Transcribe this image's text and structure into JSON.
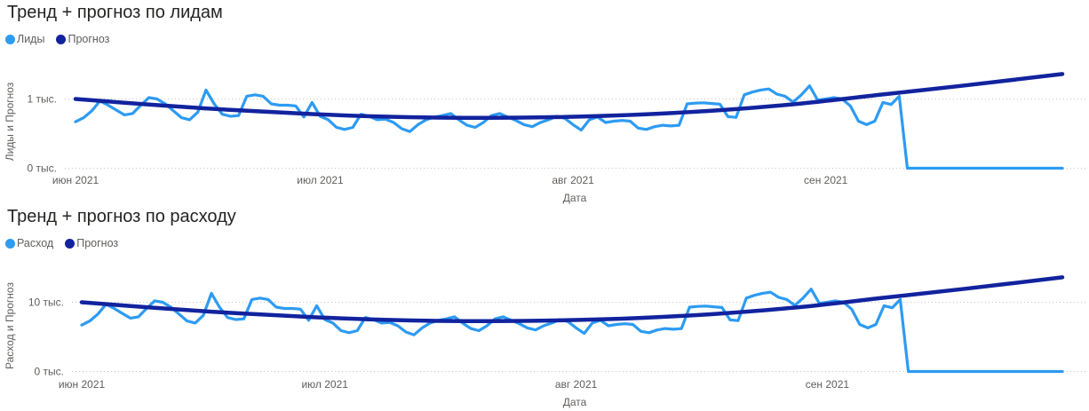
{
  "chart_data": [
    {
      "type": "line",
      "title": "Тренд + прогноз по лидам",
      "xlabel": "Дата",
      "ylabel": "Лиды и Прогноз",
      "x_start": "2021-06-01",
      "x_end": "2021-09-30",
      "legend_position": "top-left",
      "grid": "dotted",
      "xticks": [
        {
          "label": "июн 2021",
          "day": 1
        },
        {
          "label": "июл 2021",
          "day": 31
        },
        {
          "label": "авг 2021",
          "day": 62
        },
        {
          "label": "сен 2021",
          "day": 93
        }
      ],
      "yticks": [
        {
          "label": "0 тыс.",
          "value": 0
        },
        {
          "label": "1 тыс.",
          "value": 1000
        }
      ],
      "series": [
        {
          "name": "Лиды",
          "color": "#2D9BF2",
          "values": [
            670,
            730,
            830,
            970,
            910,
            840,
            770,
            790,
            910,
            1020,
            1000,
            930,
            830,
            730,
            700,
            810,
            1130,
            930,
            780,
            750,
            760,
            1040,
            1060,
            1040,
            930,
            910,
            910,
            900,
            740,
            950,
            750,
            700,
            590,
            560,
            590,
            780,
            750,
            700,
            710,
            660,
            570,
            530,
            630,
            700,
            740,
            760,
            790,
            700,
            620,
            590,
            660,
            760,
            790,
            740,
            690,
            630,
            600,
            660,
            700,
            750,
            720,
            630,
            550,
            700,
            740,
            660,
            680,
            690,
            680,
            580,
            560,
            600,
            620,
            610,
            620,
            930,
            940,
            945,
            935,
            925,
            745,
            735,
            1060,
            1100,
            1130,
            1145,
            1070,
            1040,
            955,
            1060,
            1190,
            985,
            1000,
            1020,
            1000,
            900,
            680,
            630,
            680,
            950,
            920,
            1040,
            0,
            0,
            0,
            0,
            0,
            0,
            0,
            0,
            0,
            0,
            0,
            0,
            0,
            0,
            0,
            0,
            0,
            0,
            0,
            0
          ]
        },
        {
          "name": "Прогноз",
          "color": "#12239E",
          "points": [
            [
              1,
              1000
            ],
            [
              10,
              920
            ],
            [
              20,
              842
            ],
            [
              30,
              782
            ],
            [
              40,
              742
            ],
            [
              50,
              728
            ],
            [
              60,
              738
            ],
            [
              70,
              775
            ],
            [
              80,
              838
            ],
            [
              90,
              935
            ],
            [
              100,
              1065
            ],
            [
              110,
              1195
            ],
            [
              122,
              1360
            ]
          ]
        }
      ]
    },
    {
      "type": "line",
      "title": "Тренд + прогноз по расходу",
      "xlabel": "Дата",
      "ylabel": "Расход и Прогноз",
      "x_start": "2021-06-01",
      "x_end": "2021-09-30",
      "legend_position": "top-left",
      "grid": "dotted",
      "xticks": [
        {
          "label": "июн 2021",
          "day": 1
        },
        {
          "label": "июл 2021",
          "day": 31
        },
        {
          "label": "авг 2021",
          "day": 62
        },
        {
          "label": "сен 2021",
          "day": 93
        }
      ],
      "yticks": [
        {
          "label": "0 тыс.",
          "value": 0
        },
        {
          "label": "10 тыс.",
          "value": 10000
        }
      ],
      "series": [
        {
          "name": "Расход",
          "color": "#2D9BF2",
          "values": [
            6700,
            7300,
            8300,
            9700,
            9100,
            8400,
            7700,
            7900,
            9100,
            10200,
            10000,
            9300,
            8300,
            7300,
            7000,
            8100,
            11300,
            9300,
            7800,
            7500,
            7600,
            10400,
            10600,
            10400,
            9300,
            9100,
            9100,
            9000,
            7400,
            9500,
            7500,
            7000,
            5900,
            5600,
            5900,
            7800,
            7500,
            7000,
            7100,
            6600,
            5700,
            5300,
            6300,
            7000,
            7400,
            7600,
            7900,
            7000,
            6200,
            5900,
            6600,
            7600,
            7900,
            7400,
            6900,
            6300,
            6000,
            6600,
            7000,
            7500,
            7200,
            6300,
            5500,
            7000,
            7400,
            6600,
            6800,
            6900,
            6800,
            5800,
            5600,
            6000,
            6200,
            6100,
            6200,
            9300,
            9400,
            9450,
            9350,
            9250,
            7450,
            7350,
            10600,
            11000,
            11300,
            11450,
            10700,
            10400,
            9550,
            10600,
            11900,
            9850,
            10000,
            10200,
            10000,
            9000,
            6800,
            6300,
            6800,
            9500,
            9200,
            10400,
            0,
            0,
            0,
            0,
            0,
            0,
            0,
            0,
            0,
            0,
            0,
            0,
            0,
            0,
            0,
            0,
            0,
            0,
            0,
            0
          ]
        },
        {
          "name": "Прогноз",
          "color": "#12239E",
          "points": [
            [
              1,
              10000
            ],
            [
              10,
              9200
            ],
            [
              20,
              8420
            ],
            [
              30,
              7820
            ],
            [
              40,
              7420
            ],
            [
              50,
              7280
            ],
            [
              60,
              7380
            ],
            [
              70,
              7750
            ],
            [
              80,
              8380
            ],
            [
              90,
              9350
            ],
            [
              100,
              10650
            ],
            [
              110,
              11950
            ],
            [
              122,
              13600
            ]
          ]
        }
      ]
    }
  ]
}
